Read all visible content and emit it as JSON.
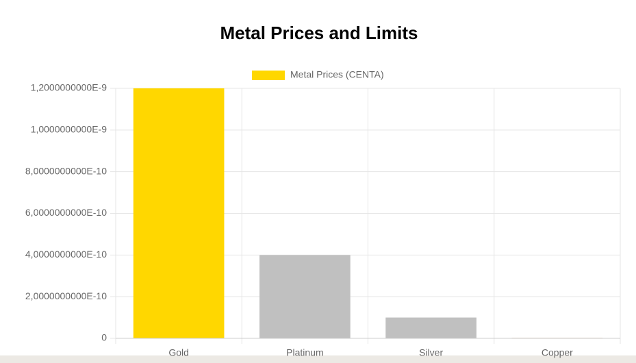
{
  "chart_data": {
    "type": "bar",
    "title": "Metal Prices and Limits",
    "categories": [
      "Gold",
      "Platinum",
      "Silver",
      "Copper"
    ],
    "series": [
      {
        "name": "Metal Prices (CENTA)",
        "colors": [
          "#ffd700",
          "#c0c0c0",
          "#c0c0c0",
          "#e8d6c4"
        ],
        "values": [
          1.2e-09,
          4e-10,
          1e-10,
          3e-12
        ]
      }
    ],
    "ylim": [
      0,
      1.2e-09
    ],
    "yticks": [
      0,
      {
        "value": 2e-10,
        "label": "2,0000000000E-10"
      },
      {
        "value": 4e-10,
        "label": "4,0000000000E-10"
      },
      {
        "value": 6e-10,
        "label": "6,0000000000E-10"
      },
      {
        "value": 8e-10,
        "label": "8,0000000000E-10"
      },
      {
        "value": 1e-09,
        "label": "1,0000000000E-9"
      },
      {
        "value": 1.2e-09,
        "label": "1,2000000000E-9"
      }
    ],
    "grid": true,
    "legend": "top"
  }
}
